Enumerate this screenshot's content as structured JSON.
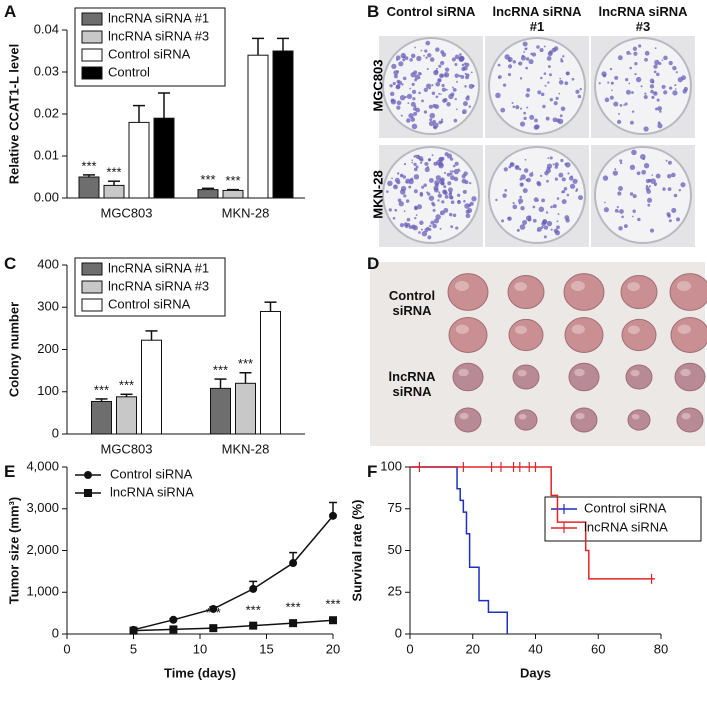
{
  "chart_data": [
    {
      "type": "bar",
      "panel_label": "A",
      "ylabel": "Relative CCAT1-L level",
      "categories": [
        "MGC803",
        "MKN-28"
      ],
      "ylim": [
        0,
        0.04
      ],
      "yticks": [
        {
          "value": 0,
          "label": "0.00"
        },
        {
          "value": 0.01,
          "label": "0.01"
        },
        {
          "value": 0.02,
          "label": "0.02"
        },
        {
          "value": 0.03,
          "label": "0.03"
        },
        {
          "value": 0.04,
          "label": "0.04"
        }
      ],
      "legend": "upper left",
      "series": [
        {
          "name": "lncRNA siRNA #1",
          "color": "#6e6e6e",
          "values": [
            0.005,
            0.002
          ],
          "errors": [
            0.0005,
            0.0003
          ],
          "labels": [
            "***",
            "***"
          ]
        },
        {
          "name": "lncRNA siRNA #3",
          "color": "#c8c8c8",
          "values": [
            0.003,
            0.0018
          ],
          "errors": [
            0.001,
            0.0002
          ],
          "labels": [
            "***",
            "***"
          ]
        },
        {
          "name": "Control siRNA",
          "color": "#ffffff",
          "values": [
            0.018,
            0.034
          ],
          "errors": [
            0.004,
            0.004
          ]
        },
        {
          "name": "Control",
          "color": "#000000",
          "values": [
            0.019,
            0.035
          ],
          "errors": [
            0.006,
            0.003
          ]
        }
      ]
    },
    {
      "type": "bar",
      "panel_label": "C",
      "ylabel": "Colony number",
      "categories": [
        "MGC803",
        "MKN-28"
      ],
      "ylim": [
        0,
        400
      ],
      "yticks": [
        0,
        100,
        200,
        300,
        400
      ],
      "legend": "upper left",
      "series": [
        {
          "name": "lncRNA siRNA #1",
          "color": "#6e6e6e",
          "values": [
            77,
            108
          ],
          "errors": [
            6,
            22
          ],
          "labels": [
            "***",
            "***"
          ]
        },
        {
          "name": "lncRNA siRNA #3",
          "color": "#c8c8c8",
          "values": [
            88,
            120
          ],
          "errors": [
            6,
            25
          ],
          "labels": [
            "***",
            "***"
          ]
        },
        {
          "name": "Control siRNA",
          "color": "#ffffff",
          "values": [
            222,
            290
          ],
          "errors": [
            22,
            22
          ]
        }
      ]
    },
    {
      "type": "line",
      "panel_label": "E",
      "xlabel": "Time (days)",
      "ylabel": "Tumor size (mm³)",
      "x": [
        5,
        8,
        11,
        14,
        17,
        20
      ],
      "xlim": [
        0,
        20
      ],
      "xticks": [
        0,
        5,
        10,
        15,
        20
      ],
      "ylim": [
        0,
        4000
      ],
      "yticks": [
        0,
        {
          "value": 1000,
          "label": "1,000"
        },
        {
          "value": 2000,
          "label": "2,000"
        },
        {
          "value": 3000,
          "label": "3,000"
        },
        {
          "value": 4000,
          "label": "4,000"
        }
      ],
      "legend": "upper left",
      "series": [
        {
          "name": "Control siRNA",
          "color": "#111111",
          "marker": "circle",
          "values": [
            100,
            340,
            600,
            1080,
            1700,
            2830
          ],
          "errors": [
            20,
            30,
            50,
            180,
            250,
            320
          ]
        },
        {
          "name": "lncRNA siRNA",
          "color": "#111111",
          "marker": "square",
          "values": [
            80,
            110,
            140,
            200,
            260,
            330
          ],
          "errors": [
            10,
            10,
            20,
            20,
            30,
            30
          ],
          "labels": [
            null,
            null,
            "***",
            "***",
            "***",
            "***"
          ]
        }
      ]
    },
    {
      "type": "step",
      "panel_label": "F",
      "xlabel": "Days",
      "ylabel": "Survival rate (%)",
      "xlim": [
        0,
        80
      ],
      "xticks": [
        0,
        20,
        40,
        60,
        80
      ],
      "ylim": [
        0,
        100
      ],
      "yticks": [
        0,
        25,
        50,
        75,
        100
      ],
      "legend": "upper right",
      "series": [
        {
          "name": "Control siRNA",
          "color": "#1f2fbf",
          "x": [
            0,
            15,
            16,
            17,
            18,
            19,
            22,
            25,
            31
          ],
          "values": [
            100,
            87,
            80,
            73,
            60,
            40,
            20,
            13,
            0
          ]
        },
        {
          "name": "lncRNA siRNA",
          "color": "#e0252a",
          "x": [
            0,
            45,
            47,
            56,
            57,
            78
          ],
          "values": [
            100,
            83,
            67,
            50,
            33,
            33
          ],
          "censored": [
            3,
            17,
            26,
            29,
            33,
            35,
            38,
            40,
            77
          ]
        }
      ]
    }
  ],
  "photo_panels": [
    {
      "panel_label": "B",
      "columns": [
        "Control siRNA",
        "lncRNA siRNA #1",
        "lncRNA siRNA #3"
      ],
      "rows": [
        "MGC803",
        "MKN-28"
      ]
    },
    {
      "panel_label": "D",
      "rows": [
        "Control siRNA",
        "lncRNA siRNA"
      ]
    }
  ]
}
